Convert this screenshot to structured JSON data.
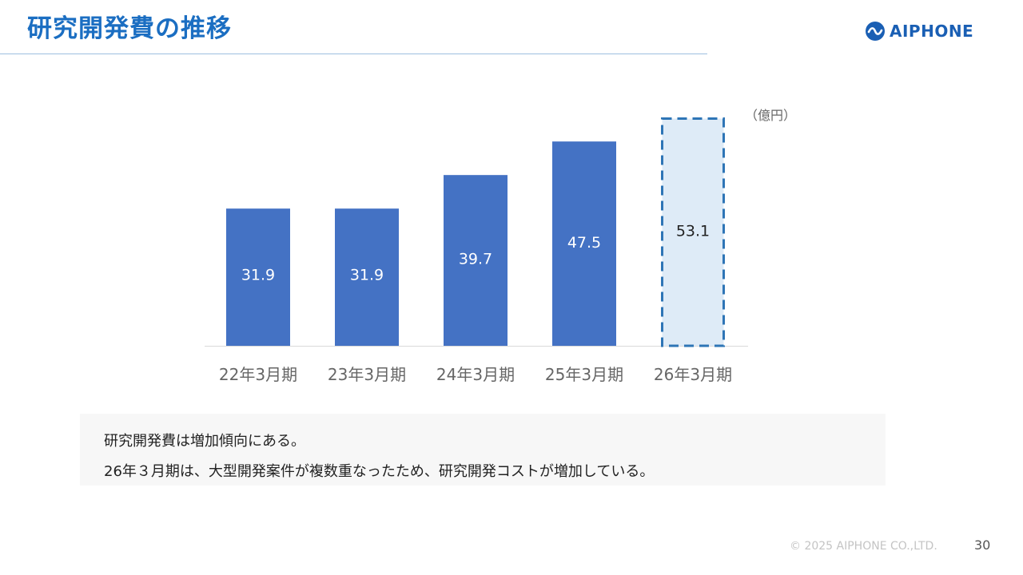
{
  "header": {
    "title": "研究開発費の推移",
    "logo_text": "AIPHONE",
    "brand_color": "#1a5fb4"
  },
  "chart_data": {
    "type": "bar",
    "unit_label": "（億円）",
    "categories": [
      "22年3月期",
      "23年3月期",
      "24年3月期",
      "25年3月期",
      "26年3月期"
    ],
    "values": [
      31.9,
      31.9,
      39.7,
      47.5,
      53.1
    ],
    "value_labels": [
      "31.9",
      "31.9",
      "39.7",
      "47.5",
      "53.1"
    ],
    "forecast": [
      false,
      false,
      false,
      false,
      true
    ],
    "ylim": [
      0,
      53.1
    ],
    "grid": false,
    "legend": "none",
    "bar_color": "#4472c4",
    "forecast_fill": "#deebf7",
    "forecast_border": "#2e75b6"
  },
  "description": {
    "line1": "研究開発費は増加傾向にある。",
    "line2": "26年３月期は、大型開発案件が複数重なったため、研究開発コストが増加している。"
  },
  "footer": {
    "copyright": "© 2025 AIPHONE CO.,LTD.",
    "page_number": "30"
  }
}
